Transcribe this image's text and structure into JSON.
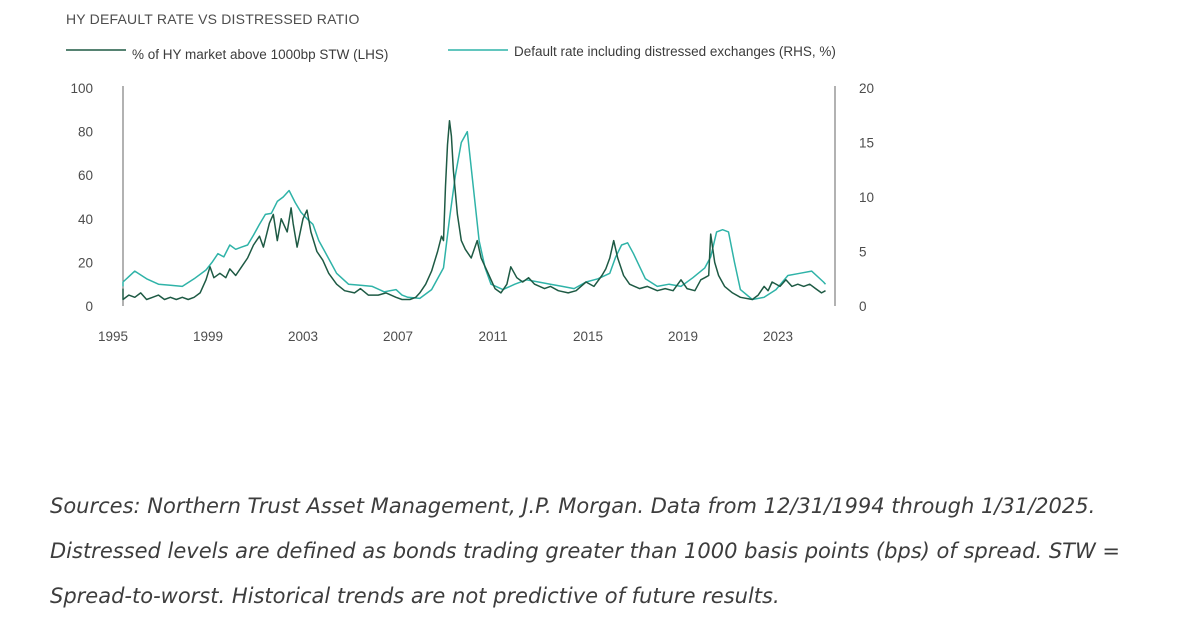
{
  "chart_data": {
    "type": "line",
    "title": "HY DEFAULT RATE VS DISTRESSED RATIO",
    "x_range": [
      "1995-01",
      "2025-01"
    ],
    "x_ticks": [
      "1995",
      "1999",
      "2003",
      "2007",
      "2011",
      "2015",
      "2019",
      "2023"
    ],
    "y_left": {
      "range": [
        0,
        100
      ],
      "ticks": [
        "100",
        "80",
        "60",
        "40",
        "20",
        "0"
      ]
    },
    "y_right": {
      "range": [
        0,
        20
      ],
      "ticks": [
        "20",
        "15",
        "10",
        "5",
        "0"
      ]
    },
    "legend_placement": "top",
    "series": [
      {
        "name": "% of HY market above 1000bp STW (LHS)",
        "axis": "left",
        "color": "#1e5a44",
        "points": [
          [
            "1995-01",
            8
          ],
          [
            "1995-03",
            5
          ],
          [
            "1995-06",
            3
          ],
          [
            "1995-09",
            5
          ],
          [
            "1995-12",
            4
          ],
          [
            "1996-03",
            6
          ],
          [
            "1996-06",
            3
          ],
          [
            "1996-09",
            4
          ],
          [
            "1996-12",
            5
          ],
          [
            "1997-03",
            3
          ],
          [
            "1997-06",
            4
          ],
          [
            "1997-09",
            3
          ],
          [
            "1997-12",
            4
          ],
          [
            "1998-03",
            3
          ],
          [
            "1998-06",
            4
          ],
          [
            "1998-09",
            6
          ],
          [
            "1998-12",
            12
          ],
          [
            "1999-02",
            18
          ],
          [
            "1999-04",
            13
          ],
          [
            "1999-07",
            15
          ],
          [
            "1999-10",
            13
          ],
          [
            "1999-12",
            17
          ],
          [
            "2000-03",
            14
          ],
          [
            "2000-06",
            18
          ],
          [
            "2000-09",
            22
          ],
          [
            "2000-12",
            28
          ],
          [
            "2001-03",
            32
          ],
          [
            "2001-05",
            27
          ],
          [
            "2001-08",
            38
          ],
          [
            "2001-10",
            42
          ],
          [
            "2001-12",
            30
          ],
          [
            "2002-02",
            40
          ],
          [
            "2002-05",
            34
          ],
          [
            "2002-07",
            45
          ],
          [
            "2002-08",
            38
          ],
          [
            "2002-10",
            27
          ],
          [
            "2003-01",
            40
          ],
          [
            "2003-03",
            44
          ],
          [
            "2003-05",
            34
          ],
          [
            "2003-08",
            25
          ],
          [
            "2003-11",
            21
          ],
          [
            "2004-02",
            15
          ],
          [
            "2004-06",
            10
          ],
          [
            "2004-10",
            7
          ],
          [
            "2005-03",
            6
          ],
          [
            "2005-06",
            8
          ],
          [
            "2005-10",
            5
          ],
          [
            "2006-03",
            5
          ],
          [
            "2006-07",
            6
          ],
          [
            "2006-12",
            4
          ],
          [
            "2007-03",
            3
          ],
          [
            "2007-07",
            3
          ],
          [
            "2007-10",
            4
          ],
          [
            "2007-12",
            6
          ],
          [
            "2008-03",
            10
          ],
          [
            "2008-06",
            16
          ],
          [
            "2008-09",
            25
          ],
          [
            "2008-11",
            32
          ],
          [
            "2008-12",
            30
          ],
          [
            "2009-01",
            55
          ],
          [
            "2009-02",
            74
          ],
          [
            "2009-03",
            85
          ],
          [
            "2009-04",
            78
          ],
          [
            "2009-05",
            62
          ],
          [
            "2009-07",
            42
          ],
          [
            "2009-09",
            30
          ],
          [
            "2009-11",
            26
          ],
          [
            "2010-02",
            22
          ],
          [
            "2010-05",
            30
          ],
          [
            "2010-07",
            22
          ],
          [
            "2010-10",
            16
          ],
          [
            "2011-02",
            8
          ],
          [
            "2011-05",
            6
          ],
          [
            "2011-08",
            10
          ],
          [
            "2011-10",
            18
          ],
          [
            "2012-01",
            13
          ],
          [
            "2012-04",
            11
          ],
          [
            "2012-07",
            13
          ],
          [
            "2012-10",
            10
          ],
          [
            "2013-03",
            8
          ],
          [
            "2013-06",
            9
          ],
          [
            "2013-10",
            7
          ],
          [
            "2014-03",
            6
          ],
          [
            "2014-07",
            7
          ],
          [
            "2014-12",
            11
          ],
          [
            "2015-04",
            9
          ],
          [
            "2015-08",
            14
          ],
          [
            "2015-10",
            17
          ],
          [
            "2015-12",
            22
          ],
          [
            "2016-02",
            30
          ],
          [
            "2016-04",
            22
          ],
          [
            "2016-07",
            14
          ],
          [
            "2016-10",
            10
          ],
          [
            "2017-03",
            8
          ],
          [
            "2017-07",
            9
          ],
          [
            "2017-12",
            7
          ],
          [
            "2018-04",
            8
          ],
          [
            "2018-08",
            7
          ],
          [
            "2018-12",
            12
          ],
          [
            "2019-03",
            8
          ],
          [
            "2019-07",
            7
          ],
          [
            "2019-10",
            12
          ],
          [
            "2019-12",
            13
          ],
          [
            "2020-02",
            14
          ],
          [
            "2020-03",
            33
          ],
          [
            "2020-05",
            20
          ],
          [
            "2020-07",
            14
          ],
          [
            "2020-10",
            9
          ],
          [
            "2021-02",
            6
          ],
          [
            "2021-06",
            4
          ],
          [
            "2021-12",
            3
          ],
          [
            "2022-03",
            5
          ],
          [
            "2022-06",
            9
          ],
          [
            "2022-08",
            7
          ],
          [
            "2022-10",
            11
          ],
          [
            "2023-02",
            9
          ],
          [
            "2023-05",
            12
          ],
          [
            "2023-08",
            9
          ],
          [
            "2023-11",
            10
          ],
          [
            "2024-02",
            9
          ],
          [
            "2024-05",
            10
          ],
          [
            "2024-08",
            8
          ],
          [
            "2024-11",
            6
          ],
          [
            "2025-01",
            7
          ]
        ]
      },
      {
        "name": "Default rate including distressed exchanges (RHS, %)",
        "axis": "right",
        "color": "#2fb3a8",
        "points": [
          [
            "1995-01",
            1.8
          ],
          [
            "1995-06",
            2.2
          ],
          [
            "1995-12",
            3.2
          ],
          [
            "1996-06",
            2.5
          ],
          [
            "1996-12",
            2.0
          ],
          [
            "1997-06",
            1.9
          ],
          [
            "1997-12",
            1.8
          ],
          [
            "1998-06",
            2.5
          ],
          [
            "1998-12",
            3.3
          ],
          [
            "1999-03",
            4.0
          ],
          [
            "1999-06",
            4.8
          ],
          [
            "1999-09",
            4.5
          ],
          [
            "1999-12",
            5.6
          ],
          [
            "2000-03",
            5.2
          ],
          [
            "2000-06",
            5.4
          ],
          [
            "2000-09",
            5.6
          ],
          [
            "2000-12",
            6.5
          ],
          [
            "2001-03",
            7.5
          ],
          [
            "2001-06",
            8.4
          ],
          [
            "2001-09",
            8.5
          ],
          [
            "2001-12",
            9.6
          ],
          [
            "2002-03",
            10.0
          ],
          [
            "2002-06",
            10.6
          ],
          [
            "2002-09",
            9.5
          ],
          [
            "2002-12",
            8.6
          ],
          [
            "2003-03",
            8.0
          ],
          [
            "2003-06",
            7.5
          ],
          [
            "2003-09",
            6.0
          ],
          [
            "2003-12",
            5.0
          ],
          [
            "2004-03",
            4.0
          ],
          [
            "2004-06",
            3.0
          ],
          [
            "2004-12",
            2.0
          ],
          [
            "2005-06",
            1.9
          ],
          [
            "2005-12",
            1.8
          ],
          [
            "2006-06",
            1.3
          ],
          [
            "2006-12",
            1.5
          ],
          [
            "2007-03",
            1.0
          ],
          [
            "2007-06",
            0.8
          ],
          [
            "2007-12",
            0.7
          ],
          [
            "2008-06",
            1.5
          ],
          [
            "2008-12",
            3.5
          ],
          [
            "2009-03",
            8.0
          ],
          [
            "2009-06",
            12.0
          ],
          [
            "2009-09",
            15.0
          ],
          [
            "2009-12",
            16.0
          ],
          [
            "2010-03",
            11.0
          ],
          [
            "2010-06",
            6.0
          ],
          [
            "2010-09",
            3.5
          ],
          [
            "2010-12",
            2.0
          ],
          [
            "2011-06",
            1.5
          ],
          [
            "2011-12",
            2.0
          ],
          [
            "2012-06",
            2.4
          ],
          [
            "2012-12",
            2.2
          ],
          [
            "2013-06",
            2.0
          ],
          [
            "2013-12",
            1.8
          ],
          [
            "2014-06",
            1.6
          ],
          [
            "2014-12",
            2.2
          ],
          [
            "2015-06",
            2.5
          ],
          [
            "2015-12",
            3.0
          ],
          [
            "2016-03",
            4.5
          ],
          [
            "2016-06",
            5.6
          ],
          [
            "2016-09",
            5.8
          ],
          [
            "2016-12",
            4.8
          ],
          [
            "2017-06",
            2.5
          ],
          [
            "2017-12",
            1.8
          ],
          [
            "2018-06",
            2.0
          ],
          [
            "2018-12",
            1.8
          ],
          [
            "2019-06",
            2.6
          ],
          [
            "2019-12",
            3.5
          ],
          [
            "2020-03",
            4.5
          ],
          [
            "2020-06",
            6.8
          ],
          [
            "2020-09",
            7.0
          ],
          [
            "2020-12",
            6.8
          ],
          [
            "2021-03",
            4.0
          ],
          [
            "2021-06",
            1.5
          ],
          [
            "2021-12",
            0.6
          ],
          [
            "2022-06",
            0.8
          ],
          [
            "2022-12",
            1.5
          ],
          [
            "2023-06",
            2.8
          ],
          [
            "2023-12",
            3.0
          ],
          [
            "2024-06",
            3.2
          ],
          [
            "2024-12",
            2.2
          ],
          [
            "2025-01",
            2.0
          ]
        ]
      }
    ]
  },
  "source_note": "Sources: Northern Trust Asset Management, J.P. Morgan. Data from 12/31/1994 through 1/31/2025. Distressed levels are defined as bonds trading greater than 1000 basis points (bps) of spread. STW = Spread-to-worst. Historical trends are not predictive of future results."
}
